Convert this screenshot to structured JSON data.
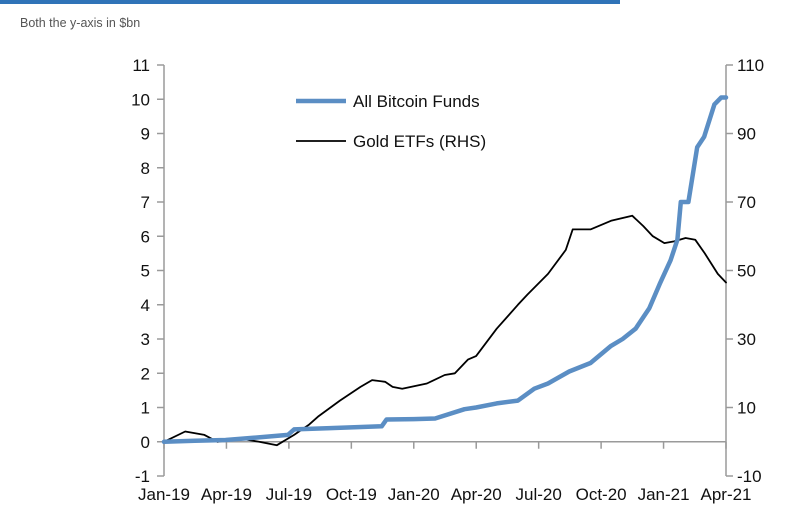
{
  "subtitle": "Both the y-axis in $bn",
  "chart_data": {
    "type": "line",
    "x_axis": {
      "ticks": [
        "Jan-19",
        "Apr-19",
        "Jul-19",
        "Oct-19",
        "Jan-20",
        "Apr-20",
        "Jul-20",
        "Oct-20",
        "Jan-21",
        "Apr-21"
      ],
      "range": [
        "2019-01-01",
        "2021-04-01"
      ]
    },
    "y_left": {
      "range": [
        -1,
        11
      ],
      "ticks": [
        "-1",
        "0",
        "1",
        "2",
        "3",
        "4",
        "5",
        "6",
        "7",
        "8",
        "9",
        "10",
        "11"
      ]
    },
    "y_right": {
      "range": [
        -10,
        110
      ],
      "ticks": [
        "-10",
        "10",
        "30",
        "50",
        "70",
        "90",
        "110"
      ]
    },
    "grid": false,
    "legend_position": "top-center",
    "series": [
      {
        "name": "All Bitcoin Funds",
        "axis": "left",
        "color": "#5b8ec4",
        "points": [
          [
            "2019-01-01",
            0.0
          ],
          [
            "2019-02-15",
            0.03
          ],
          [
            "2019-04-01",
            0.05
          ],
          [
            "2019-05-15",
            0.12
          ],
          [
            "2019-06-01",
            0.15
          ],
          [
            "2019-07-01",
            0.2
          ],
          [
            "2019-07-10",
            0.36
          ],
          [
            "2019-09-01",
            0.4
          ],
          [
            "2019-11-15",
            0.45
          ],
          [
            "2019-11-22",
            0.65
          ],
          [
            "2020-01-01",
            0.66
          ],
          [
            "2020-02-01",
            0.68
          ],
          [
            "2020-03-15",
            0.95
          ],
          [
            "2020-04-01",
            1.0
          ],
          [
            "2020-05-01",
            1.12
          ],
          [
            "2020-06-01",
            1.2
          ],
          [
            "2020-06-25",
            1.55
          ],
          [
            "2020-07-15",
            1.7
          ],
          [
            "2020-08-15",
            2.05
          ],
          [
            "2020-09-15",
            2.3
          ],
          [
            "2020-10-15",
            2.8
          ],
          [
            "2020-11-01",
            3.0
          ],
          [
            "2020-11-20",
            3.3
          ],
          [
            "2020-12-10",
            3.9
          ],
          [
            "2020-12-25",
            4.6
          ],
          [
            "2021-01-10",
            5.3
          ],
          [
            "2021-01-20",
            5.9
          ],
          [
            "2021-01-25",
            7.0
          ],
          [
            "2021-02-05",
            7.0
          ],
          [
            "2021-02-18",
            8.6
          ],
          [
            "2021-02-28",
            8.9
          ],
          [
            "2021-03-15",
            9.85
          ],
          [
            "2021-03-25",
            10.05
          ],
          [
            "2021-04-01",
            10.05
          ]
        ]
      },
      {
        "name": "Gold ETFs (RHS)",
        "axis": "right",
        "color": "#000000",
        "points": [
          [
            "2019-01-01",
            0.0
          ],
          [
            "2019-02-01",
            3.0
          ],
          [
            "2019-03-01",
            2.0
          ],
          [
            "2019-03-20",
            0.0
          ],
          [
            "2019-04-20",
            1.0
          ],
          [
            "2019-05-20",
            0.0
          ],
          [
            "2019-06-15",
            -1.0
          ],
          [
            "2019-07-10",
            2.0
          ],
          [
            "2019-08-01",
            5.0
          ],
          [
            "2019-08-15",
            7.5
          ],
          [
            "2019-09-15",
            12.0
          ],
          [
            "2019-10-15",
            16.0
          ],
          [
            "2019-11-01",
            18.0
          ],
          [
            "2019-11-20",
            17.5
          ],
          [
            "2019-12-01",
            16.0
          ],
          [
            "2019-12-15",
            15.5
          ],
          [
            "2020-01-20",
            17.0
          ],
          [
            "2020-02-15",
            19.5
          ],
          [
            "2020-03-01",
            20.0
          ],
          [
            "2020-03-20",
            24.0
          ],
          [
            "2020-04-01",
            25.0
          ],
          [
            "2020-05-01",
            33.0
          ],
          [
            "2020-06-01",
            40.0
          ],
          [
            "2020-06-15",
            43.0
          ],
          [
            "2020-07-15",
            49.0
          ],
          [
            "2020-08-10",
            56.0
          ],
          [
            "2020-08-20",
            62.0
          ],
          [
            "2020-09-15",
            62.0
          ],
          [
            "2020-10-15",
            64.5
          ],
          [
            "2020-11-15",
            66.0
          ],
          [
            "2020-12-01",
            63.0
          ],
          [
            "2020-12-15",
            60.0
          ],
          [
            "2021-01-01",
            58.0
          ],
          [
            "2021-01-15",
            58.5
          ],
          [
            "2021-02-01",
            59.5
          ],
          [
            "2021-02-15",
            59.0
          ],
          [
            "2021-03-01",
            55.0
          ],
          [
            "2021-03-20",
            49.0
          ],
          [
            "2021-04-01",
            46.5
          ]
        ]
      }
    ]
  }
}
